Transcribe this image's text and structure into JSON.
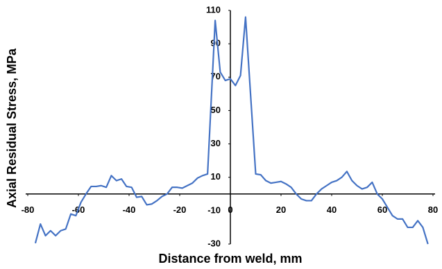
{
  "chart_data": {
    "type": "line",
    "x_label": "Distance from weld, mm",
    "y_label": "Axial Residual Stress, MPa",
    "xlim": [
      -80,
      80
    ],
    "xticks": [
      -80,
      -60,
      -40,
      -20,
      0,
      20,
      40,
      60,
      80
    ],
    "ylim": [
      -30,
      110
    ],
    "yticks": [
      110,
      90,
      70,
      50,
      30,
      10,
      -10,
      -30
    ],
    "grid": false,
    "series": [
      {
        "color": "#4472c4",
        "x": [
          -77,
          -75,
          -73,
          -71,
          -69,
          -67,
          -65,
          -63,
          -61,
          -59,
          -57,
          -55,
          -53,
          -51,
          -49,
          -47,
          -45,
          -43,
          -41,
          -39,
          -37,
          -35,
          -33,
          -31,
          -29,
          -27,
          -25,
          -23,
          -21,
          -19,
          -17,
          -15,
          -13,
          -11,
          -9,
          -6,
          -4,
          -2,
          0,
          2,
          4,
          6,
          10,
          12,
          14,
          16,
          18,
          20,
          22,
          24,
          26,
          28,
          30,
          32,
          34,
          36,
          38,
          40,
          42,
          44,
          46,
          48,
          50,
          52,
          54,
          56,
          58,
          60,
          62,
          64,
          66,
          68,
          70,
          72,
          74,
          76,
          78
        ],
        "values": [
          -29.5,
          -18,
          -25,
          -22,
          -25,
          -22,
          -21,
          -12,
          -13,
          -5,
          0,
          4.5,
          4.5,
          5,
          4,
          11,
          8,
          9,
          4.5,
          4,
          -2,
          -1.5,
          -6.5,
          -6,
          -4,
          -1.5,
          0,
          4,
          4,
          3.5,
          5,
          6.5,
          9.5,
          11,
          12,
          104,
          73,
          68,
          69,
          65,
          71,
          106,
          12,
          11.5,
          8,
          6.5,
          7,
          7.5,
          6,
          4,
          0,
          -3,
          -4,
          -4,
          0,
          3,
          5,
          7,
          8,
          10,
          13.5,
          8,
          5,
          3,
          4,
          7,
          0,
          -3,
          -8,
          -13,
          -15,
          -15,
          -20,
          -20,
          -16,
          -20,
          -30
        ]
      }
    ]
  }
}
